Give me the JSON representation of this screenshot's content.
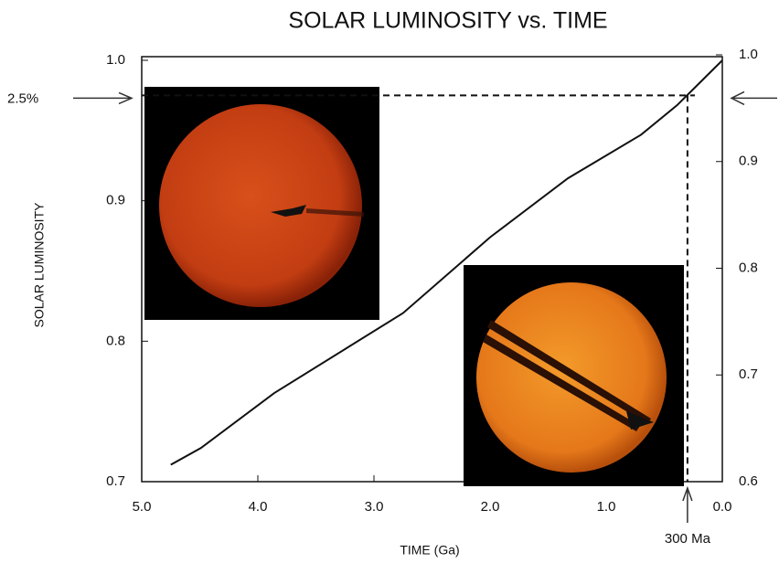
{
  "chart_data": {
    "type": "line",
    "title": "SOLAR LUMINOSITY vs. TIME",
    "x_label": "TIME (Ga)",
    "y_label": "SOLAR LUMINOSITY",
    "x": [
      4.75,
      4.49,
      3.86,
      2.75,
      2.0,
      1.33,
      0.7,
      0.39,
      0.0
    ],
    "series": [
      {
        "color": "#111111",
        "values": [
          0.712,
          0.724,
          0.763,
          0.82,
          0.874,
          0.916,
          0.947,
          0.968,
          1.0
        ]
      }
    ],
    "xlim": [
      5,
      0
    ],
    "xticks": [
      {
        "value": 5,
        "label": "5.0"
      },
      {
        "value": 4,
        "label": "4.0"
      },
      {
        "value": 3,
        "label": "3.0"
      },
      {
        "value": 2,
        "label": "2.0"
      },
      {
        "value": 1,
        "label": "1.0"
      },
      {
        "value": 0,
        "label": "0.0"
      }
    ],
    "ylim": [
      0.7,
      1.0
    ],
    "yticks": [
      {
        "value": 1,
        "label": "1.0"
      },
      0.9,
      0.8,
      0.7
    ],
    "y2lim": [
      0.6,
      1.0
    ],
    "y2ticks": [
      {
        "value": 1,
        "label": "1.0"
      },
      0.9,
      0.8,
      0.7,
      0.6
    ],
    "annotations": [
      {
        "text": "2.5%",
        "y": 0.975
      },
      {
        "text": "300 Ma",
        "x": 0.3
      }
    ]
  }
}
